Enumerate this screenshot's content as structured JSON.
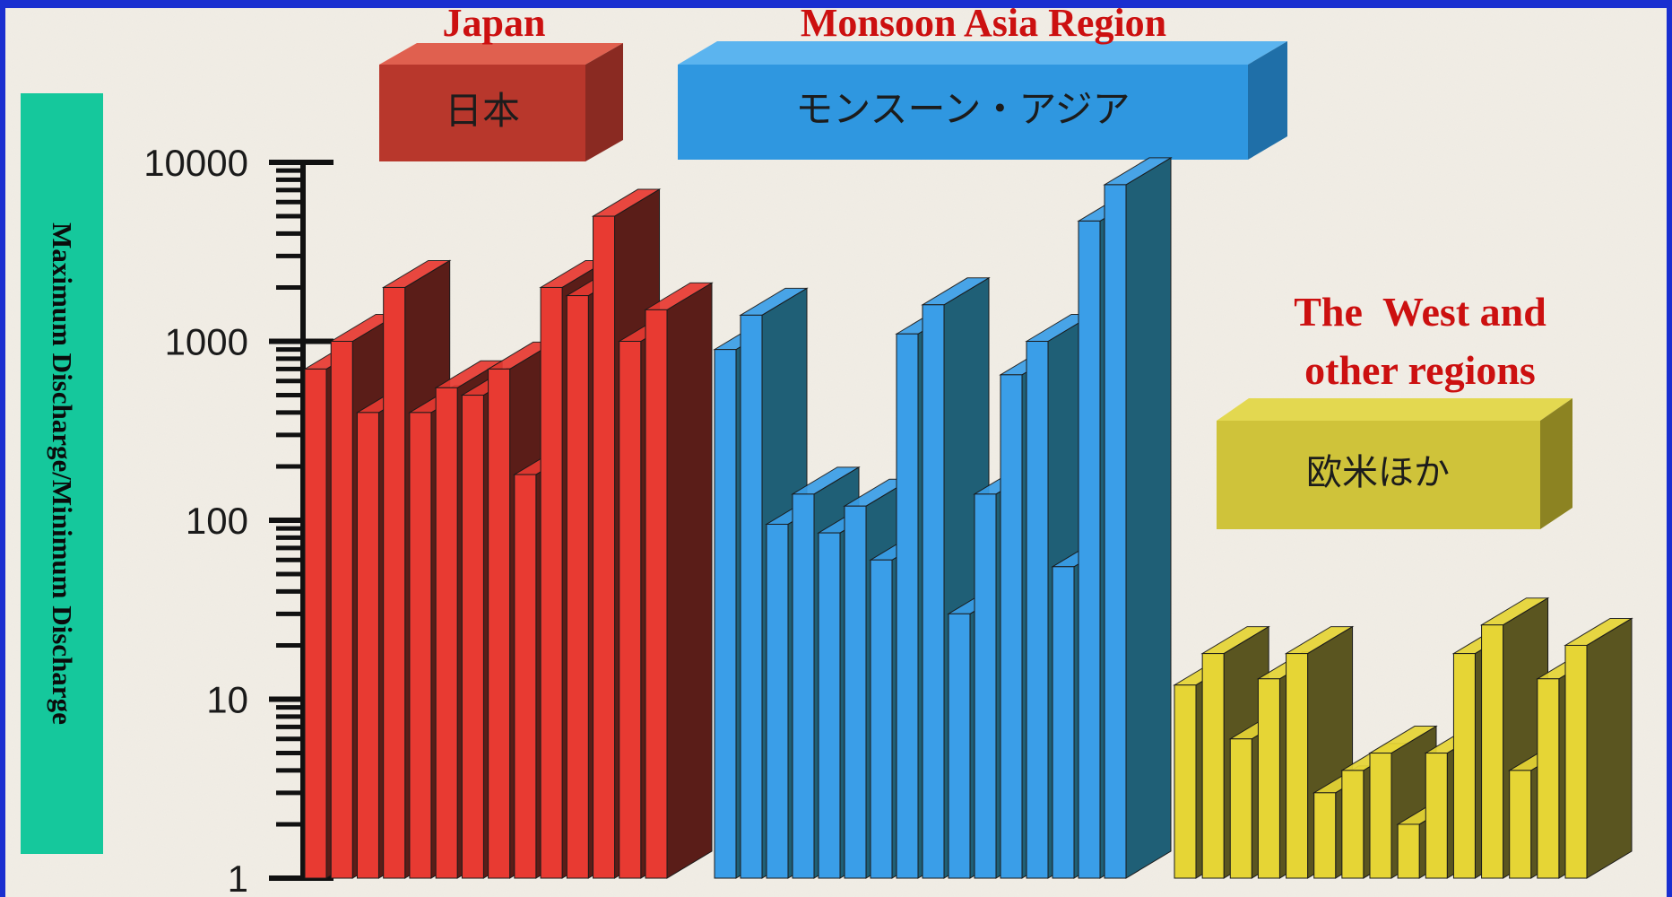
{
  "chart_data": {
    "type": "bar",
    "scale": "log",
    "ylim": [
      1,
      10000
    ],
    "ylabel": "Maximum Discharge/Minimum Discharge",
    "yticks": [
      {
        "value": 1,
        "label": "1"
      },
      {
        "value": 10,
        "label": "10"
      },
      {
        "value": 100,
        "label": "100"
      },
      {
        "value": 1000,
        "label": "1000"
      },
      {
        "value": 10000,
        "label": "10000"
      }
    ],
    "groups": [
      {
        "name": "Japan",
        "native_name": "日本",
        "color": "#e83a32",
        "side_color": "#5a1d18",
        "label_box_color": "#b8372c",
        "values": [
          700,
          1000,
          400,
          2000,
          400,
          550,
          500,
          700,
          180,
          2000,
          1800,
          5000,
          1000,
          1500
        ]
      },
      {
        "name": "Monsoon Asia Region",
        "native_name": "モンスーン・アジア",
        "color": "#3a9ee8",
        "side_color": "#1f5f76",
        "label_box_color": "#2f97e0",
        "values": [
          900,
          1400,
          95,
          140,
          85,
          120,
          60,
          1100,
          1600,
          30,
          140,
          650,
          1000,
          55,
          4700,
          7500
        ]
      },
      {
        "name": "The  West and\nother regions",
        "native_name": "欧米ほか",
        "color": "#e6d535",
        "side_color": "#5a5520",
        "label_box_color": "#cfc33a",
        "values": [
          12,
          18,
          6,
          13,
          18,
          3,
          4,
          5,
          2,
          5,
          18,
          26,
          4,
          13,
          20
        ]
      }
    ]
  },
  "labels": {
    "japan_en": "Japan",
    "monsoon_en": "Monsoon Asia Region",
    "west_en_line1": "The  West and",
    "west_en_line2": "other regions"
  },
  "colors": {
    "page_bg": "#f2eee6",
    "border": "#1a2fd0",
    "ylabel_box": "#15c89c",
    "axis": "#111111"
  }
}
